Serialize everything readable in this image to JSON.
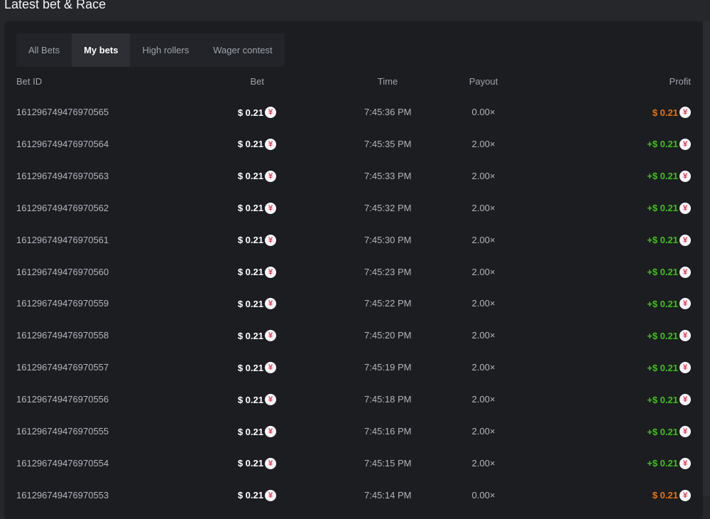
{
  "title": "Latest bet & Race",
  "tabs": [
    {
      "label": "All Bets"
    },
    {
      "label": "My bets",
      "active": true
    },
    {
      "label": "High rollers"
    },
    {
      "label": "Wager contest"
    }
  ],
  "columns": {
    "id": "Bet ID",
    "bet": "Bet",
    "time": "Time",
    "payout": "Payout",
    "profit": "Profit"
  },
  "coin_icon": "yen-coin-icon",
  "colors": {
    "win": "#3dc21c",
    "loss": "#e8750f"
  },
  "rows": [
    {
      "id": "161296749476970565",
      "bet": "$ 0.21",
      "time": "7:45:36 PM",
      "payout": "0.00×",
      "profit": "$ 0.21",
      "win": false
    },
    {
      "id": "161296749476970564",
      "bet": "$ 0.21",
      "time": "7:45:35 PM",
      "payout": "2.00×",
      "profit": "+$ 0.21",
      "win": true
    },
    {
      "id": "161296749476970563",
      "bet": "$ 0.21",
      "time": "7:45:33 PM",
      "payout": "2.00×",
      "profit": "+$ 0.21",
      "win": true
    },
    {
      "id": "161296749476970562",
      "bet": "$ 0.21",
      "time": "7:45:32 PM",
      "payout": "2.00×",
      "profit": "+$ 0.21",
      "win": true
    },
    {
      "id": "161296749476970561",
      "bet": "$ 0.21",
      "time": "7:45:30 PM",
      "payout": "2.00×",
      "profit": "+$ 0.21",
      "win": true
    },
    {
      "id": "161296749476970560",
      "bet": "$ 0.21",
      "time": "7:45:23 PM",
      "payout": "2.00×",
      "profit": "+$ 0.21",
      "win": true
    },
    {
      "id": "161296749476970559",
      "bet": "$ 0.21",
      "time": "7:45:22 PM",
      "payout": "2.00×",
      "profit": "+$ 0.21",
      "win": true
    },
    {
      "id": "161296749476970558",
      "bet": "$ 0.21",
      "time": "7:45:20 PM",
      "payout": "2.00×",
      "profit": "+$ 0.21",
      "win": true
    },
    {
      "id": "161296749476970557",
      "bet": "$ 0.21",
      "time": "7:45:19 PM",
      "payout": "2.00×",
      "profit": "+$ 0.21",
      "win": true
    },
    {
      "id": "161296749476970556",
      "bet": "$ 0.21",
      "time": "7:45:18 PM",
      "payout": "2.00×",
      "profit": "+$ 0.21",
      "win": true
    },
    {
      "id": "161296749476970555",
      "bet": "$ 0.21",
      "time": "7:45:16 PM",
      "payout": "2.00×",
      "profit": "+$ 0.21",
      "win": true
    },
    {
      "id": "161296749476970554",
      "bet": "$ 0.21",
      "time": "7:45:15 PM",
      "payout": "2.00×",
      "profit": "+$ 0.21",
      "win": true
    },
    {
      "id": "161296749476970553",
      "bet": "$ 0.21",
      "time": "7:45:14 PM",
      "payout": "0.00×",
      "profit": "$ 0.21",
      "win": false
    }
  ]
}
